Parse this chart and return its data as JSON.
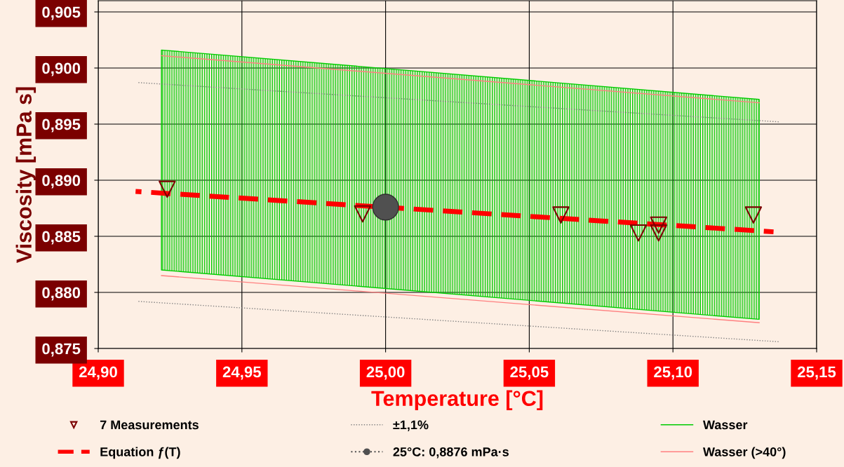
{
  "chart_data": {
    "type": "line",
    "xlabel": "Temperature [°C]",
    "ylabel": "Viscosity [mPa s]",
    "xlim": [
      24.9,
      25.15
    ],
    "ylim": [
      0.875,
      0.906
    ],
    "xticks": [
      {
        "value": 24.9,
        "label": "24,90"
      },
      {
        "value": 24.95,
        "label": "24,95"
      },
      {
        "value": 25.0,
        "label": "25,00"
      },
      {
        "value": 25.05,
        "label": "25,05"
      },
      {
        "value": 25.1,
        "label": "25,10"
      },
      {
        "value": 25.15,
        "label": "25,15"
      }
    ],
    "yticks": [
      {
        "value": 0.875,
        "label": "0,875"
      },
      {
        "value": 0.88,
        "label": "0,880"
      },
      {
        "value": 0.885,
        "label": "0,885"
      },
      {
        "value": 0.89,
        "label": "0,890"
      },
      {
        "value": 0.895,
        "label": "0,895"
      },
      {
        "value": 0.9,
        "label": "0,900"
      },
      {
        "value": 0.905,
        "label": "0,905"
      }
    ],
    "grid": true,
    "legend": "bottom",
    "series": [
      {
        "name": "7 Measurements",
        "type": "scatter",
        "marker": "triangle",
        "color": "#7b0000",
        "x": [
          24.924,
          24.992,
          25.061,
          25.088,
          25.095,
          25.095,
          25.128
        ],
        "values": [
          0.8892,
          0.887,
          0.8869,
          0.8853,
          0.886,
          0.8853,
          0.8869
        ]
      },
      {
        "name": "Equation ƒ(T)",
        "line_style": "dashed",
        "color": "#ff0000",
        "x": [
          24.913,
          25.135
        ],
        "values": [
          0.889,
          0.8854
        ]
      },
      {
        "name": "±1,1%",
        "line_style": "dotted",
        "color": "#808080",
        "x": [
          24.914,
          25.137
        ],
        "values": [
          0.8987,
          0.8952
        ]
      },
      {
        "line_style": "dotted",
        "color": "#808080",
        "x": [
          24.914,
          25.137
        ],
        "values": [
          0.8792,
          0.8756
        ]
      },
      {
        "name": "25°C: 0,8876 mPa·s",
        "type": "scatter",
        "marker": "circle",
        "color": "#505050",
        "x": [
          25.0
        ],
        "values": [
          0.8876
        ]
      },
      {
        "name": "Wasser",
        "type": "area",
        "line_style": "solid",
        "color": "#00cc00",
        "x": [
          24.922,
          25.13
        ],
        "values": [
          null,
          null
        ],
        "lower": [
          0.882,
          0.8776
        ],
        "upper": [
          0.9016,
          0.8972
        ]
      },
      {
        "name": "Wasser (>40°)",
        "line_style": "solid",
        "color": "#ff8080",
        "x": [
          24.922,
          25.13
        ],
        "values": [
          0.9011,
          0.8969
        ]
      },
      {
        "line_style": "solid",
        "color": "#ff8080",
        "x": [
          24.922,
          25.13
        ],
        "values": [
          0.8815,
          0.8773
        ]
      }
    ]
  }
}
